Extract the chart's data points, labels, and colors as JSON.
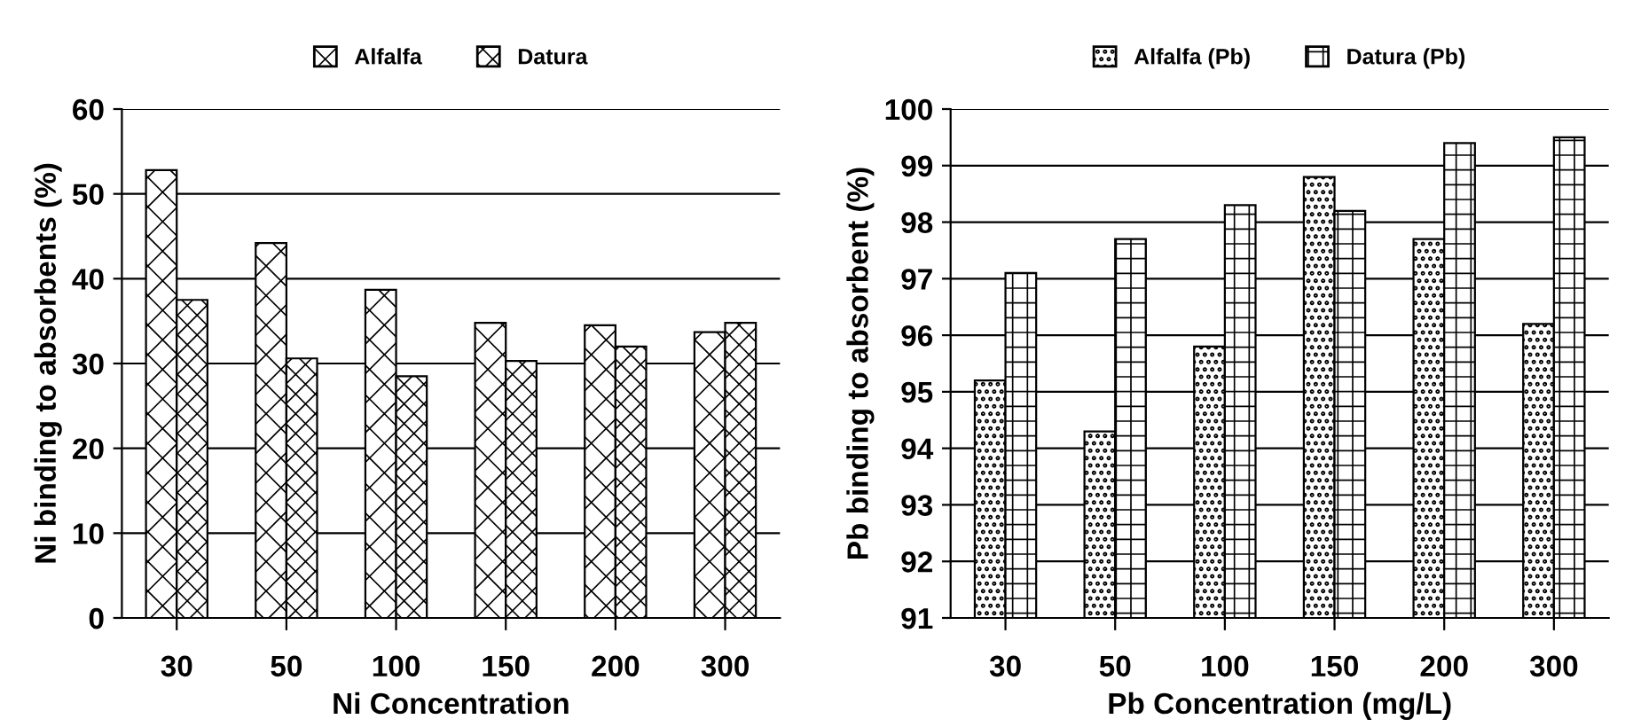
{
  "chart_data": [
    {
      "type": "bar",
      "categories": [
        "30",
        "50",
        "100",
        "150",
        "200",
        "300"
      ],
      "xlabel": "Ni Concentration",
      "ylabel": "Ni binding to absorbents (%)",
      "ylim": [
        0,
        60
      ],
      "yticks": [
        0,
        10,
        20,
        30,
        40,
        50,
        60
      ],
      "grid": "y",
      "legend": "top",
      "series": [
        {
          "name": "Alfalfa",
          "color": "#000000",
          "values": [
            52.8,
            44.2,
            38.7,
            34.8,
            34.5,
            33.7
          ]
        },
        {
          "name": "Datura",
          "color": "#000000",
          "values": [
            37.5,
            30.6,
            28.5,
            30.3,
            32.0,
            34.8
          ]
        }
      ]
    },
    {
      "type": "bar",
      "categories": [
        "30",
        "50",
        "100",
        "150",
        "200",
        "300"
      ],
      "xlabel": "Pb Concentration (mg/L)",
      "ylabel": "Pb binding to absorbent (%)",
      "ylim": [
        91,
        100
      ],
      "yticks": [
        91,
        92,
        93,
        94,
        95,
        96,
        97,
        98,
        99,
        100
      ],
      "grid": "y",
      "legend": "top",
      "series": [
        {
          "name": "Alfalfa (Pb)",
          "color": "#000000",
          "values": [
            95.2,
            94.3,
            95.8,
            98.8,
            97.7,
            96.2
          ]
        },
        {
          "name": "Datura (Pb)",
          "color": "#000000",
          "values": [
            97.1,
            97.7,
            98.3,
            98.2,
            99.4,
            99.5
          ]
        }
      ]
    }
  ]
}
